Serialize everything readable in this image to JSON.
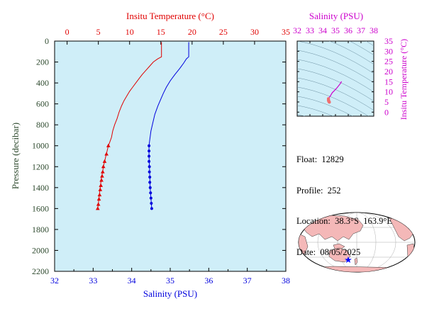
{
  "colors": {
    "temperature": "#e00000",
    "salinity": "#0000dd",
    "pressure_axis": "#2e4a2e",
    "inset_accent": "#cc00cc",
    "plot_bg": "#cfeef8",
    "land": "#f4b8b8"
  },
  "chart_data": [
    {
      "type": "line",
      "xlabel_top": "Insitu Temperature (°C)",
      "xlabel_bottom": "Salinity (PSU)",
      "ylabel": "Pressure (decibar)",
      "temperature_ticks": [
        "0",
        "5",
        "10",
        "15",
        "20",
        "25",
        "30",
        "35"
      ],
      "salinity_ticks": [
        "32",
        "33",
        "34",
        "35",
        "36",
        "37",
        "38"
      ],
      "pressure_ticks": [
        "0",
        "200",
        "400",
        "600",
        "800",
        "1000",
        "1200",
        "1400",
        "1600",
        "1800",
        "2000",
        "2200"
      ],
      "temperature_range": [
        -2,
        35
      ],
      "salinity_range": [
        32,
        38
      ],
      "pressure_range": [
        0,
        2200
      ],
      "temperature_profile": [
        [
          15.1,
          10
        ],
        [
          15.1,
          150
        ],
        [
          14.5,
          170
        ],
        [
          13.8,
          200
        ],
        [
          13.2,
          240
        ],
        [
          12.6,
          280
        ],
        [
          12.0,
          320
        ],
        [
          11.5,
          360
        ],
        [
          11.0,
          400
        ],
        [
          10.5,
          440
        ],
        [
          10.0,
          480
        ],
        [
          9.6,
          520
        ],
        [
          9.1,
          570
        ],
        [
          8.7,
          620
        ],
        [
          8.3,
          680
        ],
        [
          8.0,
          740
        ],
        [
          7.6,
          800
        ],
        [
          7.3,
          860
        ],
        [
          7.1,
          920
        ],
        [
          6.8,
          970
        ],
        [
          6.6,
          1000
        ],
        [
          6.4,
          1050
        ],
        [
          6.2,
          1100
        ],
        [
          6.0,
          1150
        ],
        [
          5.8,
          1200
        ],
        [
          5.7,
          1250
        ],
        [
          5.5,
          1300
        ],
        [
          5.4,
          1350
        ],
        [
          5.3,
          1400
        ],
        [
          5.2,
          1450
        ],
        [
          5.1,
          1500
        ],
        [
          5.0,
          1550
        ],
        [
          4.9,
          1600
        ]
      ],
      "temperature_markers": [
        [
          6.6,
          1000
        ],
        [
          6.3,
          1080
        ],
        [
          6.0,
          1150
        ],
        [
          5.8,
          1200
        ],
        [
          5.7,
          1250
        ],
        [
          5.6,
          1290
        ],
        [
          5.5,
          1330
        ],
        [
          5.4,
          1380
        ],
        [
          5.3,
          1420
        ],
        [
          5.2,
          1470
        ],
        [
          5.1,
          1510
        ],
        [
          5.0,
          1560
        ],
        [
          4.9,
          1600
        ]
      ],
      "salinity_profile": [
        [
          35.48,
          10
        ],
        [
          35.48,
          150
        ],
        [
          35.42,
          170
        ],
        [
          35.35,
          210
        ],
        [
          35.25,
          260
        ],
        [
          35.12,
          320
        ],
        [
          35.0,
          380
        ],
        [
          34.9,
          440
        ],
        [
          34.82,
          500
        ],
        [
          34.75,
          560
        ],
        [
          34.68,
          620
        ],
        [
          34.6,
          700
        ],
        [
          34.55,
          780
        ],
        [
          34.5,
          860
        ],
        [
          34.47,
          940
        ],
        [
          34.45,
          1000
        ],
        [
          34.45,
          1100
        ],
        [
          34.46,
          1200
        ],
        [
          34.47,
          1300
        ],
        [
          34.48,
          1400
        ],
        [
          34.5,
          1500
        ],
        [
          34.52,
          1600
        ]
      ],
      "salinity_markers": [
        [
          34.45,
          1000
        ],
        [
          34.45,
          1050
        ],
        [
          34.45,
          1100
        ],
        [
          34.45,
          1150
        ],
        [
          34.46,
          1200
        ],
        [
          34.46,
          1250
        ],
        [
          34.47,
          1300
        ],
        [
          34.47,
          1350
        ],
        [
          34.48,
          1400
        ],
        [
          34.49,
          1450
        ],
        [
          34.5,
          1500
        ],
        [
          34.51,
          1550
        ],
        [
          34.52,
          1600
        ]
      ],
      "grid": false
    },
    {
      "type": "scatter",
      "xlabel": "Salinity (PSU)",
      "ylabel": "Insitu Temperature (°C)",
      "x_ticks": [
        "32",
        "33",
        "34",
        "35",
        "36",
        "37",
        "38"
      ],
      "y_ticks": [
        "0",
        "5",
        "10",
        "15",
        "20",
        "25",
        "30",
        "35"
      ],
      "x_range": [
        32,
        38
      ],
      "y_range": [
        -2,
        35
      ],
      "ts_curve": [
        [
          35.48,
          15.1
        ],
        [
          35.35,
          13.8
        ],
        [
          35.12,
          12.0
        ],
        [
          34.9,
          10.5
        ],
        [
          34.75,
          9.6
        ],
        [
          34.6,
          8.0
        ],
        [
          34.5,
          7.1
        ],
        [
          34.45,
          6.6
        ],
        [
          34.46,
          5.8
        ],
        [
          34.48,
          5.3
        ],
        [
          34.52,
          4.9
        ]
      ],
      "ts_markers": [
        [
          34.45,
          6.6
        ],
        [
          34.45,
          6.0
        ],
        [
          34.46,
          5.7
        ],
        [
          34.47,
          5.5
        ],
        [
          34.48,
          5.3
        ],
        [
          34.5,
          5.1
        ],
        [
          34.52,
          4.9
        ]
      ]
    }
  ],
  "info": {
    "float_line": "Float:  12829",
    "profile_line": "Profile:  252",
    "location_line": "Location:  38.3°S  163.9°E",
    "date_line": "Date:  08/05/2025"
  }
}
